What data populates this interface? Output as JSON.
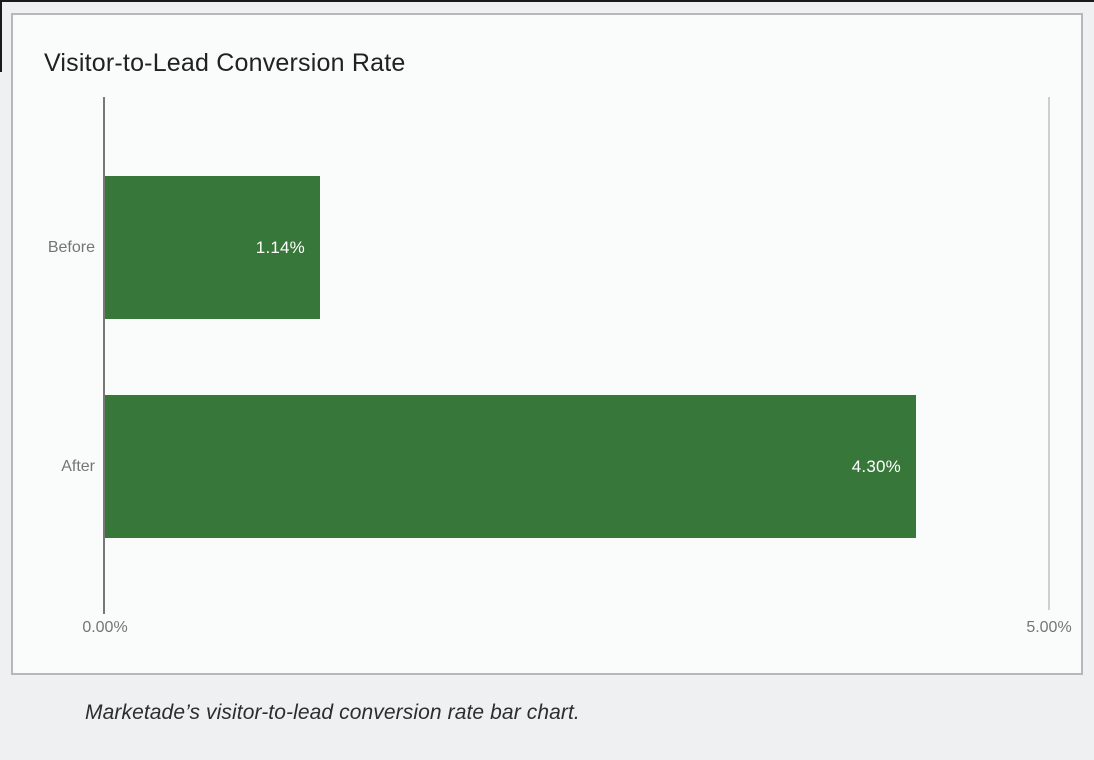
{
  "chart_data": {
    "type": "bar",
    "orientation": "horizontal",
    "title": "Visitor-to-Lead Conversion Rate",
    "categories": [
      "Before",
      "After"
    ],
    "values": [
      1.14,
      4.3
    ],
    "value_labels": [
      "1.14%",
      "4.30%"
    ],
    "xlim": [
      0,
      5
    ],
    "x_tick_labels": [
      "0.00%",
      "5.00%"
    ],
    "legend": "none",
    "grid": "vertical line at max tick only",
    "bar_color": "#38773a",
    "value_label_color": "#ffffff",
    "axis_line_color": "#787878",
    "gridline_color": "#cdd0d1",
    "category_label_color": "#757575"
  },
  "caption": {
    "text": "Marketade’s visitor-to-lead conversion rate bar chart."
  }
}
